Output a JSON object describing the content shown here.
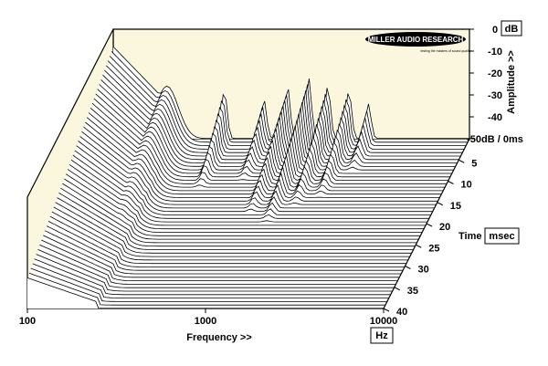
{
  "chart_data": {
    "type": "waterfall",
    "brand": "MILLER AUDIO RESEARCH",
    "brand_tagline": "testing the masters of sound quality",
    "x_axis": {
      "label": "Frequency >>",
      "unit": "Hz",
      "scale": "log",
      "range": [
        100,
        10000
      ],
      "tick_labels": [
        "100",
        "1000",
        "10000"
      ]
    },
    "y_axis": {
      "label": "Amplitude >>",
      "unit": "dB",
      "range": [
        -50,
        0
      ],
      "tick_labels": [
        "0",
        "-10",
        "-20",
        "-30",
        "-40",
        "-50dB / 0ms"
      ]
    },
    "z_axis": {
      "label": "Time",
      "unit": "msec",
      "range": [
        0,
        40
      ],
      "tick_labels": [
        "5",
        "10",
        "15",
        "20",
        "25",
        "30",
        "35",
        "40"
      ]
    },
    "slice_count": 50,
    "ridges": [
      {
        "freq": 100,
        "peak_db": -8,
        "decay_ms": 40
      },
      {
        "freq": 200,
        "peak_db": -26,
        "decay_ms": 40
      },
      {
        "freq": 420,
        "peak_db": -28,
        "decay_ms": 12
      },
      {
        "freq": 700,
        "peak_db": -32,
        "decay_ms": 10
      },
      {
        "freq": 950,
        "peak_db": -26,
        "decay_ms": 18
      },
      {
        "freq": 1250,
        "peak_db": -22,
        "decay_ms": 20
      },
      {
        "freq": 1600,
        "peak_db": -26,
        "decay_ms": 16
      },
      {
        "freq": 2100,
        "peak_db": -28,
        "decay_ms": 14
      },
      {
        "freq": 2700,
        "peak_db": -34,
        "decay_ms": 8
      }
    ]
  }
}
